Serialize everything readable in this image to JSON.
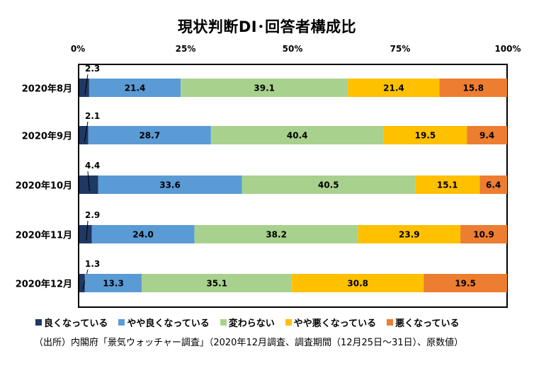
{
  "chart_data": {
    "type": "bar",
    "orientation": "horizontal-stacked-100",
    "title": "現状判断DI･回答者構成比",
    "x_ticks": [
      "0%",
      "25%",
      "50%",
      "75%",
      "100%"
    ],
    "xlim": [
      0,
      100
    ],
    "categories": [
      "2020年8月",
      "2020年9月",
      "2020年10月",
      "2020年11月",
      "2020年12月"
    ],
    "series": [
      {
        "name": "良くなっている",
        "color": "#1f3864",
        "values": [
          2.3,
          2.1,
          4.4,
          2.9,
          1.3
        ],
        "labels": [
          "2.3",
          "2.1",
          "4.4",
          "2.9",
          "1.3"
        ]
      },
      {
        "name": "やや良くなっている",
        "color": "#5b9bd5",
        "values": [
          21.4,
          28.7,
          33.6,
          24.0,
          13.3
        ],
        "labels": [
          "21.4",
          "28.7",
          "33.6",
          "24.0",
          "13.3"
        ]
      },
      {
        "name": "変わらない",
        "color": "#a9d18e",
        "values": [
          39.1,
          40.4,
          40.5,
          38.2,
          35.1
        ],
        "labels": [
          "39.1",
          "40.4",
          "40.5",
          "38.2",
          "35.1"
        ]
      },
      {
        "name": "やや悪くなっている",
        "color": "#ffc000",
        "values": [
          21.4,
          19.5,
          15.1,
          23.9,
          30.8
        ],
        "labels": [
          "21.4",
          "19.5",
          "15.1",
          "23.9",
          "30.8"
        ]
      },
      {
        "name": "悪くなっている",
        "color": "#ed7d31",
        "values": [
          15.8,
          9.4,
          6.4,
          10.9,
          19.5
        ],
        "labels": [
          "15.8",
          "9.4",
          "6.4",
          "10.9",
          "19.5"
        ]
      }
    ],
    "legend_position": "bottom",
    "grid": false
  },
  "source": "（出所）内閣府「景気ウォッチャー調査」（2020年12月調査、調査期間（12月25日～31日）、原数値）"
}
